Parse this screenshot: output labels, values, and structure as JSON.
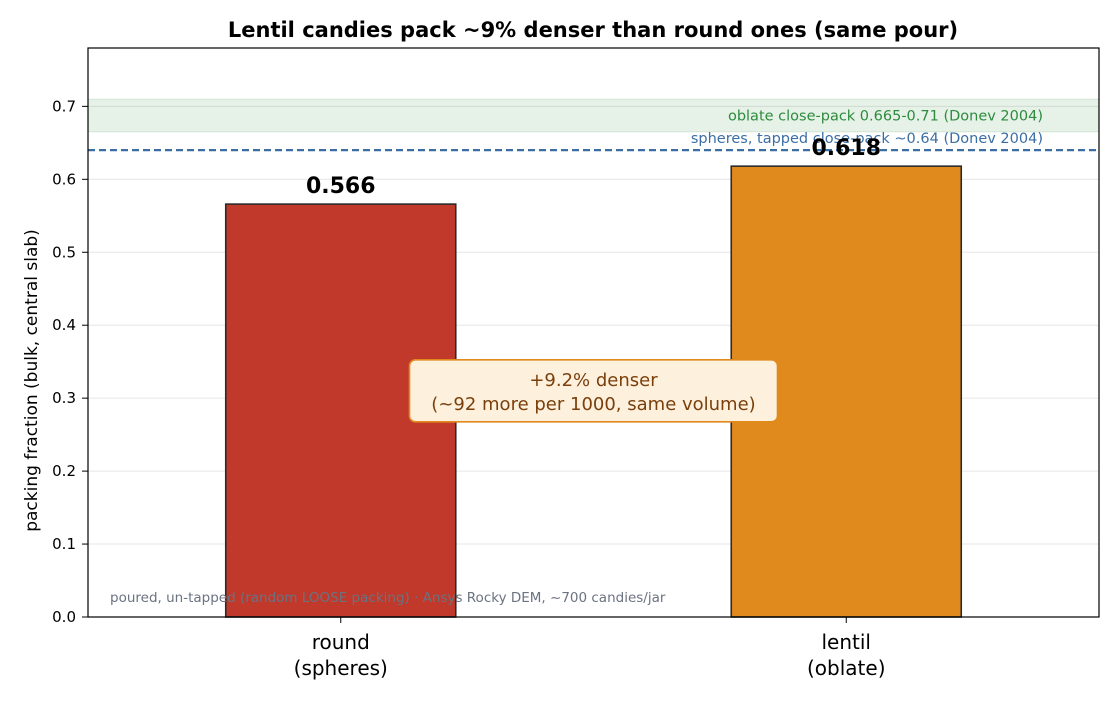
{
  "chart_data": {
    "type": "bar",
    "title": "Lentil candies pack ~9% denser than round ones (same pour)",
    "xlabel": "",
    "ylabel": "packing fraction  (bulk, central slab)",
    "ylim": [
      0,
      0.78
    ],
    "yticks": [
      0.0,
      0.1,
      0.2,
      0.3,
      0.4,
      0.5,
      0.6,
      0.7
    ],
    "grid": true,
    "categories": [
      {
        "line1": "round",
        "line2": "(spheres)"
      },
      {
        "line1": "lentil",
        "line2": "(oblate)"
      }
    ],
    "values": [
      0.566,
      0.618
    ],
    "value_labels": [
      "0.566",
      "0.618"
    ],
    "bar_colors": [
      "#c0392b",
      "#e08a1e"
    ],
    "reference_band": {
      "range": [
        0.665,
        0.71
      ],
      "label": "oblate close-pack  0.665-0.71  (Donev 2004)",
      "color": "#2e8b3e"
    },
    "reference_line": {
      "value": 0.64,
      "label": "spheres, tapped close-pack  ~0.64  (Donev 2004)",
      "color": "#3a6ea5"
    },
    "annotation": {
      "line1": "+9.2% denser",
      "line2": "(~92 more per 1000, same volume)",
      "y_center": 0.31
    },
    "footnote": "poured, un-tapped (random LOOSE packing) · Ansys Rocky DEM, ~700 candies/jar"
  }
}
